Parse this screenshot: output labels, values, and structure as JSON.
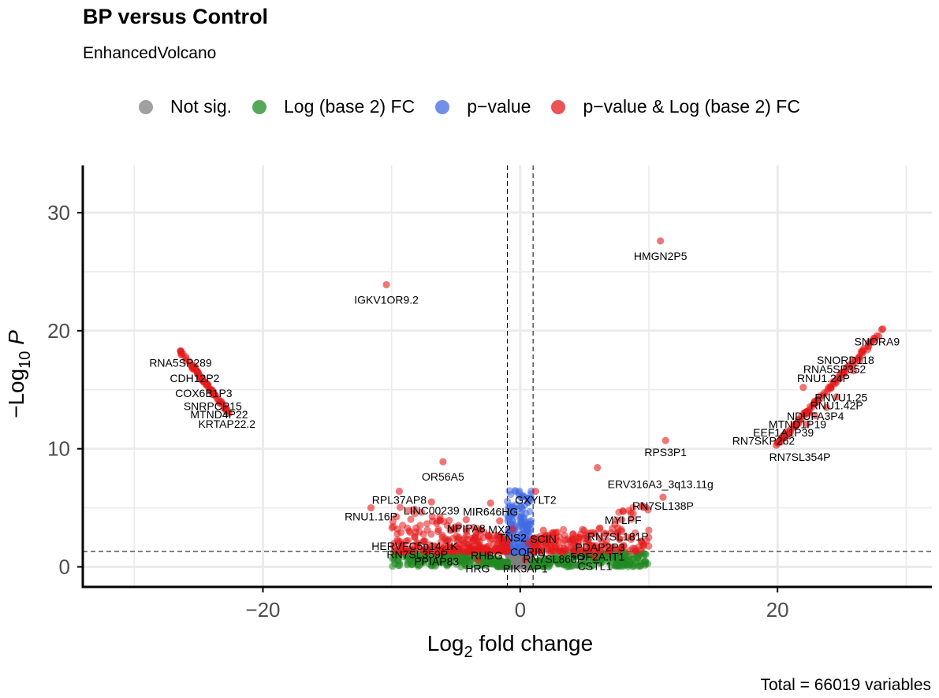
{
  "chart_data": {
    "type": "scatter",
    "title": "BP versus Control",
    "subtitle": "EnhancedVolcano",
    "xlabel_main": "Log",
    "xlabel_sub": "2",
    "xlabel_tail": " fold change",
    "ylabel_main": "−Log",
    "ylabel_sub": "10",
    "ylabel_tail": " P",
    "caption": "Total = 66019 variables",
    "xlim": [
      -34,
      32
    ],
    "ylim": [
      -1.7,
      34
    ],
    "x_ticks": [
      -20,
      0,
      20
    ],
    "x_tick_labels": [
      "−20",
      "0",
      "20"
    ],
    "y_ticks": [
      0,
      10,
      20,
      30
    ],
    "y_tick_labels": [
      "0",
      "10",
      "20",
      "30"
    ],
    "fc_cutoff": 1,
    "p_cutoff_log10": 1.3,
    "grid": true,
    "legend_position": "top",
    "legend": [
      {
        "label": "Not sig.",
        "color": "#808080"
      },
      {
        "label": "Log (base 2) FC",
        "color": "#228B22"
      },
      {
        "label": "p−value",
        "color": "#4169E1"
      },
      {
        "label": "p−value & Log (base 2) FC",
        "color": "#E41A1C"
      }
    ],
    "labeled_points": [
      {
        "gene": "HMGN2P5",
        "x": 10.9,
        "y": 27.6
      },
      {
        "gene": "IGKV1OR9.2",
        "x": -10.4,
        "y": 23.9
      },
      {
        "gene": "RNA5SP289",
        "x": -26.4,
        "y": 18.3
      },
      {
        "gene": "CDH12P2",
        "x": -25.3,
        "y": 17.0
      },
      {
        "gene": "COX6B1P3",
        "x": -24.6,
        "y": 15.7
      },
      {
        "gene": "SNRPCP15",
        "x": -23.9,
        "y": 14.6
      },
      {
        "gene": "MTND4P22",
        "x": -23.4,
        "y": 13.9
      },
      {
        "gene": "KRTAP22.2",
        "x": -22.8,
        "y": 13.1
      },
      {
        "gene": "SNORA9",
        "x": 28.1,
        "y": 20.1
      },
      {
        "gene": "SNORD118",
        "x": 27.0,
        "y": 18.4
      },
      {
        "gene": "RNA5SP352",
        "x": 26.4,
        "y": 17.5
      },
      {
        "gene": "RNU1.24P",
        "x": 25.9,
        "y": 16.6
      },
      {
        "gene": "RNVU1.25",
        "x": 22.0,
        "y": 15.2
      },
      {
        "gene": "RNU1.42P",
        "x": 24.6,
        "y": 14.4
      },
      {
        "gene": "NDUFA3P4",
        "x": 23.8,
        "y": 13.5
      },
      {
        "gene": "MTND1P19",
        "x": 22.9,
        "y": 12.8
      },
      {
        "gene": "EEF1A1P39",
        "x": 22.3,
        "y": 12.1
      },
      {
        "gene": "RN7SKP262",
        "x": 21.0,
        "y": 11.4
      },
      {
        "gene": "RN7SL354P",
        "x": 19.9,
        "y": 10.3
      },
      {
        "gene": "RPS3P1",
        "x": 11.3,
        "y": 10.7
      },
      {
        "gene": "OR56A5",
        "x": -6.0,
        "y": 8.9
      },
      {
        "gene": "ERV316A3_3q13.11g",
        "x": 6.0,
        "y": 8.4
      },
      {
        "gene": "RPL37AP8",
        "x": -9.4,
        "y": 6.4
      },
      {
        "gene": "RNU1.16P",
        "x": -11.6,
        "y": 5.0
      },
      {
        "gene": "LINC00239",
        "x": -6.9,
        "y": 5.5
      },
      {
        "gene": "MIR646HG",
        "x": -2.3,
        "y": 5.4
      },
      {
        "gene": "GXYLT2",
        "x": 1.2,
        "y": 6.4
      },
      {
        "gene": "RN7SL138P",
        "x": 11.1,
        "y": 5.9
      },
      {
        "gene": "MYLPF",
        "x": 8.0,
        "y": 4.7
      },
      {
        "gene": "MX2",
        "x": -1.6,
        "y": 3.9
      },
      {
        "gene": "NPIPA8",
        "x": -4.2,
        "y": 4.0
      },
      {
        "gene": "TNS2",
        "x": -0.6,
        "y": 3.2
      },
      {
        "gene": "SCIN",
        "x": 1.8,
        "y": 3.1
      },
      {
        "gene": "RN7SL181P",
        "x": 7.6,
        "y": 3.3
      },
      {
        "gene": "HERVFC5p14.1K",
        "x": -8.2,
        "y": 2.5
      },
      {
        "gene": "PDAP2P3",
        "x": 6.2,
        "y": 2.4
      },
      {
        "gene": "CORIN",
        "x": 0.6,
        "y": 2.0
      },
      {
        "gene": "RN7SL359P",
        "x": -8.0,
        "y": 1.8
      },
      {
        "gene": "RHBG",
        "x": -2.6,
        "y": 1.7
      },
      {
        "gene": "RN7SL863P",
        "x": 2.6,
        "y": 1.4
      },
      {
        "gene": "FOF2A.IT1",
        "x": 6.0,
        "y": 1.6
      },
      {
        "gene": "PPIAP83",
        "x": -6.5,
        "y": 1.2
      },
      {
        "gene": "HRG",
        "x": -3.3,
        "y": 0.6
      },
      {
        "gene": "PIK3AP1",
        "x": 0.4,
        "y": 0.6
      },
      {
        "gene": "CSTL1",
        "x": 5.8,
        "y": 0.8
      }
    ]
  }
}
